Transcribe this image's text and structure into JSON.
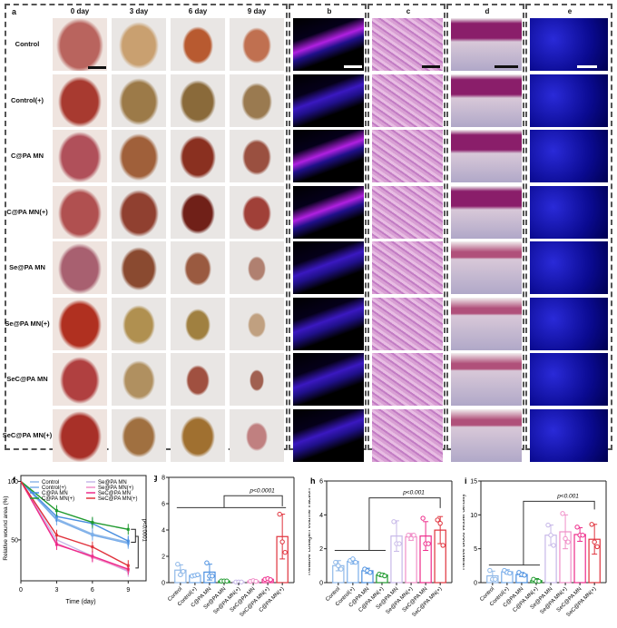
{
  "panel_a": {
    "label": "a",
    "columns": [
      "0 day",
      "3 day",
      "6 day",
      "9 day"
    ],
    "rows": [
      "Control",
      "Control(+)",
      "C@PA MN",
      "C@PA MN(+)",
      "Se@PA MN",
      "Se@PA MN(+)",
      "SeC@PA MN",
      "SeC@PA MN(+)"
    ]
  },
  "panel_b": {
    "label": "b"
  },
  "panel_c": {
    "label": "c"
  },
  "panel_d": {
    "label": "d"
  },
  "panel_e": {
    "label": "e"
  },
  "colors": {
    "Control": "#8fb8e8",
    "Control(+)": "#7aaeea",
    "C@PA MN": "#4a8fe0",
    "C@PA MN(+)": "#1f9a2e",
    "Se@PA MN": "#c7b8e8",
    "Se@PA MN(+)": "#f08fc8",
    "SeC@PA MN": "#ee2a8a",
    "SeC@PA MN(+)": "#e0323c"
  },
  "chart_data": [
    {
      "id": "f",
      "label": "f",
      "type": "line",
      "title": "",
      "xlabel": "Time (day)",
      "ylabel": "Relative wound area (%)",
      "x": [
        0,
        3,
        6,
        9
      ],
      "xticks": [
        "0",
        "3",
        "6",
        "9"
      ],
      "yticks": [
        "50",
        "100"
      ],
      "ylim": [
        15,
        105
      ],
      "xlim": [
        0,
        10.5
      ],
      "legend": "top",
      "annotation": "p<0.0001",
      "series": [
        {
          "name": "Control",
          "values": [
            100,
            68,
            55,
            48
          ]
        },
        {
          "name": "Control(+)",
          "values": [
            100,
            67,
            54,
            47
          ]
        },
        {
          "name": "C@PA MN",
          "values": [
            100,
            70,
            64,
            49
          ]
        },
        {
          "name": "C@PA MN(+)",
          "values": [
            100,
            75,
            65,
            59
          ]
        },
        {
          "name": "Se@PA MN",
          "values": [
            100,
            50,
            36,
            23
          ]
        },
        {
          "name": "Se@PA MN(+)",
          "values": [
            100,
            47,
            35,
            24
          ]
        },
        {
          "name": "SeC@PA MN",
          "values": [
            100,
            46,
            36,
            25
          ]
        },
        {
          "name": "SeC@PA MN(+)",
          "values": [
            100,
            54,
            44,
            28
          ]
        }
      ]
    },
    {
      "id": "g",
      "label": "g",
      "type": "bar",
      "ylabel": "Relative FI",
      "categories": [
        "Control",
        "Control(+)",
        "C@PA MN",
        "Se@PA MN",
        "Se@PA MN(+)",
        "SeC@PA MN",
        "SeC@PA MN(+)",
        "C@PA MN(+)"
      ],
      "series_colors": [
        "#8fb8e8",
        "#7aaeea",
        "#4a8fe0",
        "#1f9a2e",
        "#c7b8e8",
        "#f08fc8",
        "#ee2a8a",
        "#e0323c"
      ],
      "values": [
        0.95,
        0.55,
        0.8,
        0.12,
        0.05,
        0.12,
        0.25,
        3.5
      ],
      "errors": [
        0.4,
        0.1,
        0.6,
        0.03,
        0.03,
        0.06,
        0.08,
        1.7
      ],
      "points": [
        [
          1.4,
          0.6,
          0.85
        ],
        [
          0.5,
          0.55,
          0.6
        ],
        [
          1.5,
          0.5,
          0.5
        ],
        [
          0.12,
          0.12,
          0.12
        ],
        [
          0.05,
          0.05,
          0.05
        ],
        [
          0.1,
          0.15,
          0.1
        ],
        [
          0.25,
          0.3,
          0.22
        ],
        [
          5.2,
          3.1,
          2.3
        ]
      ],
      "yticks": [
        "0",
        "2",
        "4",
        "6",
        "8"
      ],
      "ylim": [
        0,
        8
      ],
      "annotation": "p<0.0001"
    },
    {
      "id": "h",
      "label": "h",
      "type": "bar",
      "ylabel": "Relative collagen volume fraction",
      "categories": [
        "Control",
        "Control(+)",
        "C@PA MN",
        "C@PA MN(+)",
        "Se@PA MN",
        "Se@PA MN(+)",
        "SeC@PA MN",
        "SeC@PA MN(+)"
      ],
      "series_colors": [
        "#8fb8e8",
        "#7aaeea",
        "#4a8fe0",
        "#1f9a2e",
        "#c7b8e8",
        "#f08fc8",
        "#ee2a8a",
        "#e0323c"
      ],
      "values": [
        1.0,
        1.25,
        0.7,
        0.45,
        2.75,
        2.7,
        2.75,
        3.1
      ],
      "errors": [
        0.3,
        0.15,
        0.15,
        0.1,
        0.9,
        0.2,
        0.85,
        0.8
      ],
      "points": [
        [
          1.2,
          1.0,
          0.8
        ],
        [
          1.3,
          1.4,
          1.2
        ],
        [
          0.8,
          0.7,
          0.6
        ],
        [
          0.5,
          0.45,
          0.4
        ],
        [
          3.6,
          2.3,
          2.3
        ],
        [
          2.8,
          2.6,
          2.8
        ],
        [
          3.8,
          2.3,
          2.3
        ],
        [
          3.7,
          3.5,
          2.2
        ]
      ],
      "yticks": [
        "0",
        "2",
        "4",
        "6"
      ],
      "ylim": [
        0,
        6
      ],
      "annotation": "p<0.001"
    },
    {
      "id": "i",
      "label": "i",
      "type": "bar",
      "ylabel": "Relative blood vessel density",
      "categories": [
        "Control",
        "Control(+)",
        "C@PA MN",
        "C@PA MN(+)",
        "Se@PA MN",
        "Se@PA MN(+)",
        "SeC@PA MN",
        "SeC@PA MN(+)"
      ],
      "series_colors": [
        "#8fb8e8",
        "#7aaeea",
        "#4a8fe0",
        "#1f9a2e",
        "#c7b8e8",
        "#f08fc8",
        "#ee2a8a",
        "#e0323c"
      ],
      "values": [
        1.0,
        1.6,
        1.2,
        0.3,
        7.0,
        7.5,
        7.1,
        6.4
      ],
      "errors": [
        0.7,
        0.3,
        0.3,
        0.3,
        1.5,
        2.5,
        1.0,
        2.2
      ],
      "points": [
        [
          1.8,
          0.5,
          0.5
        ],
        [
          1.8,
          1.5,
          1.4
        ],
        [
          1.5,
          1.2,
          1.1
        ],
        [
          0.5,
          0.2,
          0.2
        ],
        [
          8.5,
          7.0,
          5.5
        ],
        [
          10.2,
          6.5,
          6.0
        ],
        [
          8.2,
          7.0,
          7.0
        ],
        [
          8.6,
          6.0,
          5.3
        ]
      ],
      "yticks": [
        "0",
        "5",
        "10",
        "15"
      ],
      "ylim": [
        0,
        15
      ],
      "annotation": "p<0.001"
    }
  ]
}
